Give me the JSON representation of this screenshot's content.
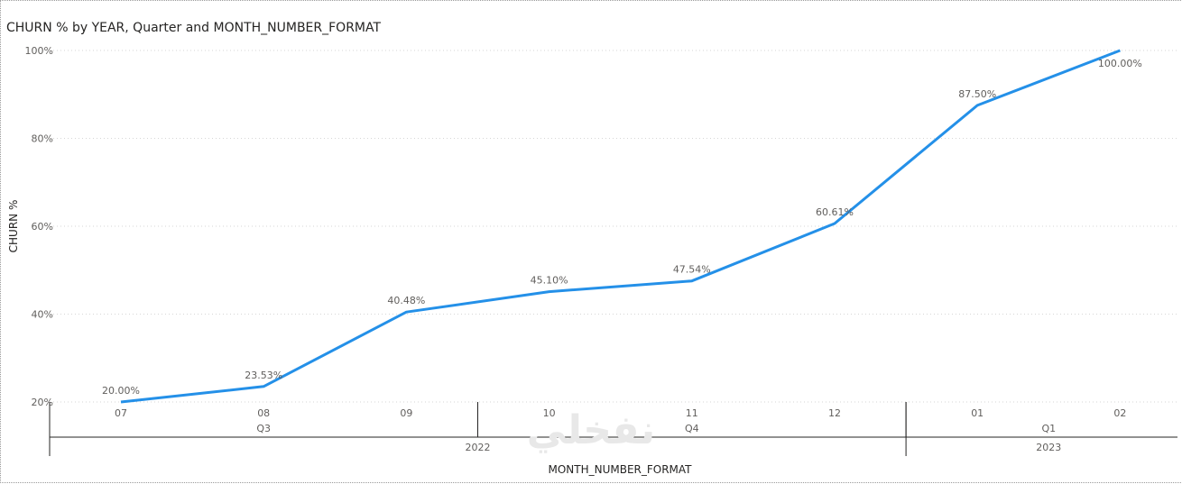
{
  "chart_data": {
    "type": "line",
    "title": "CHURN % by YEAR, Quarter and MONTH_NUMBER_FORMAT",
    "ylabel": "CHURN %",
    "xlabel": "MONTH_NUMBER_FORMAT",
    "ylim": [
      20,
      100
    ],
    "yticks": [
      "100%",
      "80%",
      "60%",
      "40%",
      "20%"
    ],
    "ytick_values": [
      100,
      80,
      60,
      40,
      20
    ],
    "grid": true,
    "line_color": "#2490e8",
    "categories": [
      "07",
      "08",
      "09",
      "10",
      "11",
      "12",
      "01",
      "02"
    ],
    "quarters": [
      {
        "label": "Q3",
        "count": 3
      },
      {
        "label": "Q4",
        "count": 3
      },
      {
        "label": "Q1",
        "count": 2
      }
    ],
    "years": [
      {
        "label": "2022",
        "count": 6
      },
      {
        "label": "2023",
        "count": 2
      }
    ],
    "series": [
      {
        "values": [
          20.0,
          23.53,
          40.48,
          45.1,
          47.54,
          60.61,
          87.5,
          100.0
        ],
        "labels": [
          "20.00%",
          "23.53%",
          "40.48%",
          "45.10%",
          "47.54%",
          "60.61%",
          "87.50%",
          "100.00%"
        ]
      }
    ]
  },
  "watermark": "نفخلي"
}
